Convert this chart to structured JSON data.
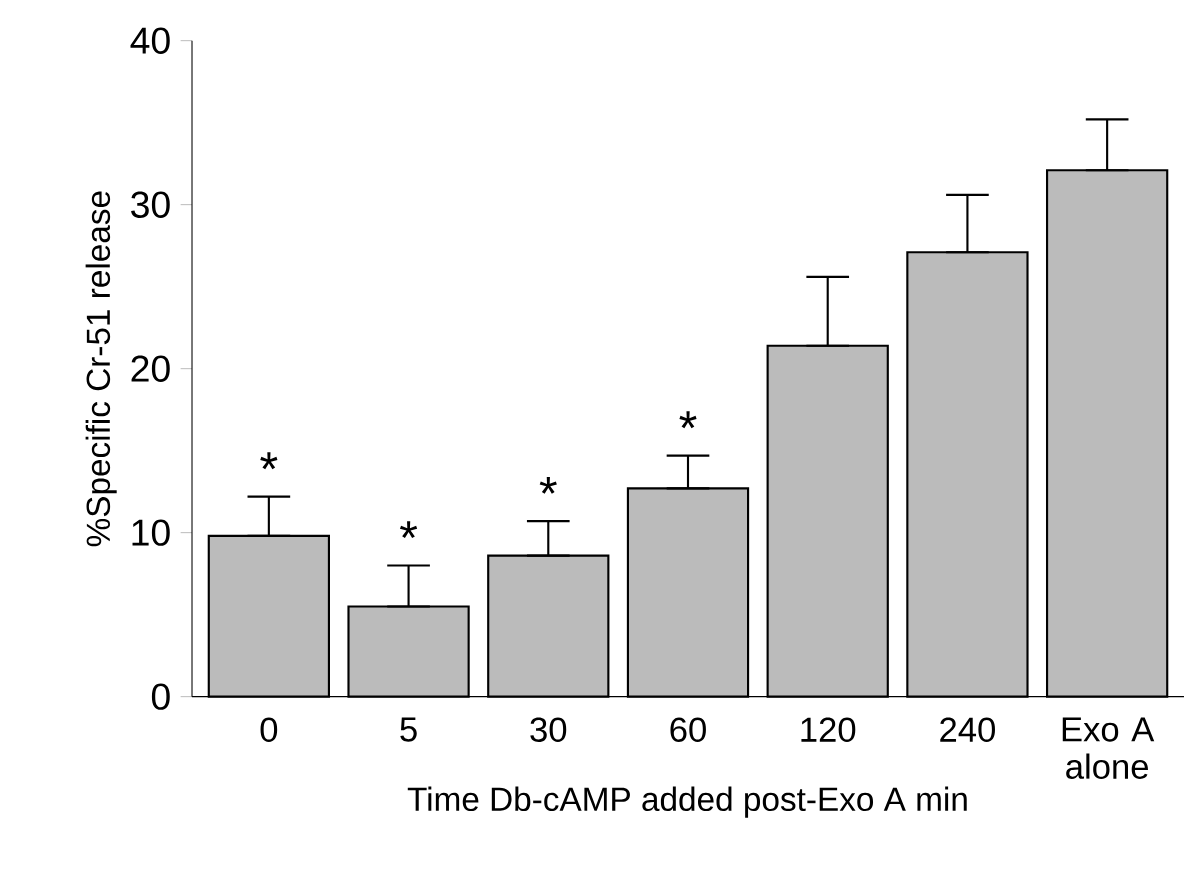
{
  "chart_data": {
    "type": "bar",
    "xlabel": "Time Db-cAMP added post-Exo A  min",
    "ylabel": "%Specific Cr-51 release",
    "categories": [
      "0",
      "5",
      "30",
      "60",
      "120",
      "240",
      "Exo A alone"
    ],
    "values": [
      9.8,
      5.5,
      8.6,
      12.7,
      21.4,
      27.1,
      32.1
    ],
    "errors": [
      [
        9.8,
        12.2
      ],
      [
        5.5,
        8.0
      ],
      [
        8.6,
        10.7
      ],
      [
        12.7,
        14.7
      ],
      [
        21.4,
        25.6
      ],
      [
        27.1,
        30.6
      ],
      [
        32.1,
        35.2
      ]
    ],
    "color": "#bbbbbb",
    "ylim": [
      0,
      40
    ],
    "yticks": [
      0,
      10,
      20,
      30,
      40
    ],
    "grid": false,
    "annotations": [
      "*",
      "*",
      "*",
      "*"
    ]
  }
}
